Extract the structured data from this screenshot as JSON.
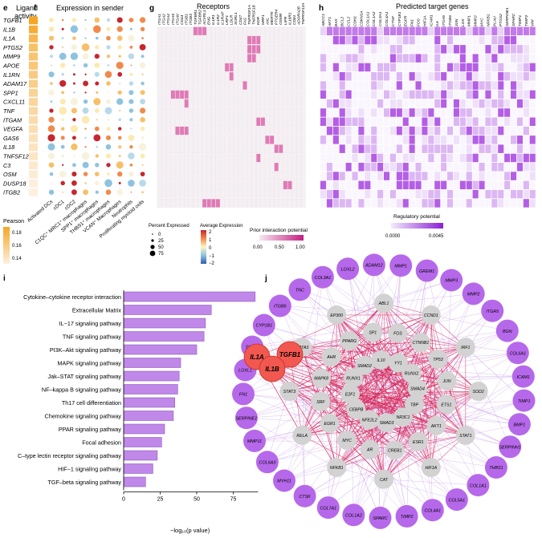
{
  "panels": {
    "e": {
      "letter": "e",
      "title_line1": "Ligand",
      "title_line2": "activity",
      "legend_title": "Pearson",
      "legend_ticks": [
        "0.18",
        "0.16",
        "0.14"
      ]
    },
    "f": {
      "letter": "f",
      "title": "Expression in sender",
      "legend_pct_title": "Percent Expressed",
      "legend_pct_values": [
        "0",
        "25",
        "50",
        "75"
      ],
      "legend_avg_title": "Average Expression",
      "legend_avg_ticks": [
        "2",
        "1",
        "0",
        "−1",
        "−2"
      ]
    },
    "g": {
      "letter": "g",
      "title": "Receptors",
      "legend_title": "Prior interaction potential",
      "legend_ticks": [
        "0.00",
        "0.50",
        "1.00"
      ]
    },
    "h": {
      "letter": "h",
      "title": "Predicted target genes",
      "legend_title": "Regulatory potential",
      "legend_ticks": [
        "0.0000",
        "0.0045"
      ]
    },
    "i": {
      "letter": "i",
      "xlabel": "−log₁₀(p value)"
    },
    "j": {
      "letter": "j"
    }
  },
  "ligands": [
    "TGFB1",
    "IL1B",
    "IL1A",
    "PTGS2",
    "MMP9",
    "APOE",
    "IL1RN",
    "ADAM17",
    "SPP1",
    "CXCL11",
    "TNF",
    "ITGAM",
    "VEGFA",
    "GAS6",
    "IL18",
    "TNFSF12",
    "C3",
    "OSM",
    "DUSP18",
    "ITGB2"
  ],
  "ligand_activity": [
    0.19,
    0.185,
    0.178,
    0.172,
    0.17,
    0.168,
    0.165,
    0.163,
    0.16,
    0.158,
    0.156,
    0.154,
    0.152,
    0.15,
    0.148,
    0.147,
    0.145,
    0.143,
    0.141,
    0.14
  ],
  "sender_cells": [
    "Activated DCs",
    "cDC1",
    "cDC2",
    "C1QC⁺ MRC1⁺ macrophages",
    "SPP1⁺ macrophages",
    "THBS1⁺ macrophages",
    "VCAN⁺ Macrophages",
    "Neutrophils",
    "Proliferating myeloid cells"
  ],
  "receptors": [
    "ITGA1",
    "ITGA2",
    "ITGA4",
    "ITGA5",
    "ITGAV",
    "CD44",
    "ITGB1",
    "ITGB3",
    "TGFBR1",
    "TGFBR2",
    "ACVRL1",
    "ENG",
    "IL1R1",
    "IL1R2",
    "IL1RAP",
    "LRP1",
    "LDLR",
    "SORL1",
    "CD47",
    "FAS",
    "TNFRSF1A",
    "TNFRSF1B",
    "KDR",
    "NRP1",
    "AXL",
    "MERTK",
    "PTGER4",
    "OSMR",
    "LIFR",
    "IL18R1",
    "CD81",
    "ADORA2B",
    "TNFRSF12A"
  ],
  "targets": [
    "ABCC1",
    "AKT1",
    "BAX",
    "BCL2",
    "CCL2",
    "CDH1",
    "CDKN1A",
    "COL1A1",
    "COL1A2",
    "COL3A1",
    "COL4A1",
    "CTGF",
    "CYP1B1",
    "EGFR",
    "FN1",
    "FOS",
    "HIF1A",
    "ICAM1",
    "IL6",
    "ITGA5",
    "ITGB6",
    "JUN",
    "LOX",
    "MMP1",
    "MMP2",
    "MYC",
    "NFKB1",
    "PLAU",
    "PTGS2",
    "SERPINE1",
    "SPARC",
    "TIMP1",
    "TIMP2",
    "VIM"
  ],
  "pathways": [
    {
      "name": "Cytokine–cytokine receptor interaction",
      "value": 90
    },
    {
      "name": "Extracellular Matrix",
      "value": 60
    },
    {
      "name": "IL−17 signaling pathway",
      "value": 56
    },
    {
      "name": "TNF signaling pathway",
      "value": 55
    },
    {
      "name": "PI3K–Akt signaling pathway",
      "value": 50
    },
    {
      "name": "MAPK signaling pathway",
      "value": 39
    },
    {
      "name": "Jak–STAT signaling pathway",
      "value": 38
    },
    {
      "name": "NF–kappa B signaling pathway",
      "value": 37
    },
    {
      "name": "Th17 cell differentiation",
      "value": 35
    },
    {
      "name": "Chemokine signaling pathway",
      "value": 34
    },
    {
      "name": "PPAR signaling pathway",
      "value": 28
    },
    {
      "name": "Focal adhesion",
      "value": 26
    },
    {
      "name": "C–type lectin receptor signaling pathway",
      "value": 23
    },
    {
      "name": "HIF−1 signaling pathway",
      "value": 20
    },
    {
      "name": "TGF–beta signaling pathway",
      "value": 15
    }
  ],
  "pathway_axis_ticks": [
    0,
    25,
    50,
    75
  ],
  "network": {
    "ligand_nodes": [
      "IL1A",
      "TGFB1",
      "IL1B"
    ],
    "hub_nodes": [
      "ABL1",
      "CCND1",
      "IRF1",
      "SOD2",
      "STAT1",
      "HIF1A",
      "CAT",
      "NFKB1",
      "RELA",
      "STAT3",
      "GATA3",
      "EP300",
      "FOS",
      "CTNNB1",
      "TP53",
      "JUN",
      "ETS1",
      "AKT1",
      "ESR1",
      "CREB1",
      "AR",
      "MYC",
      "EGR1",
      "SRF",
      "MAPK8",
      "AHR",
      "PPARG",
      "SP1",
      "YY1",
      "RUNX2",
      "SMAD4",
      "TBP",
      "NR3C1",
      "SMAD3",
      "NFE2L2",
      "CEBPB",
      "E2F1",
      "RUNX1",
      "SMAD2",
      "IL10"
    ],
    "target_nodes": [
      "COL3A1",
      "LOXL2",
      "ADAM12",
      "MMP1",
      "GREM1",
      "MMP3",
      "MMP2",
      "ITGA5",
      "BGN",
      "COL6A1",
      "ICAM1",
      "TIMP1",
      "BMP1",
      "SERPINH1",
      "THBS1",
      "COL1A1",
      "COL5A1",
      "COL4A1",
      "TIMP2",
      "SPARC",
      "COL1A2",
      "COL7A1",
      "CTSK",
      "MYH11",
      "COL6A3",
      "MMP11",
      "SERPINE1",
      "FN1",
      "LOXL1",
      "SULF2",
      "CYP1B1",
      "ITGB6",
      "TNC"
    ]
  },
  "colors": {
    "activity": "#f5a623",
    "bar": "#c088e8",
    "ligand_node": "#f2584f",
    "hub_node": "#d2d2d2",
    "target_node": "#b668ea",
    "edge_red": "#d62a5f",
    "edge_purple": "#c79ae8",
    "prior": "#d03f95",
    "target_heat": "#a13ee0"
  }
}
